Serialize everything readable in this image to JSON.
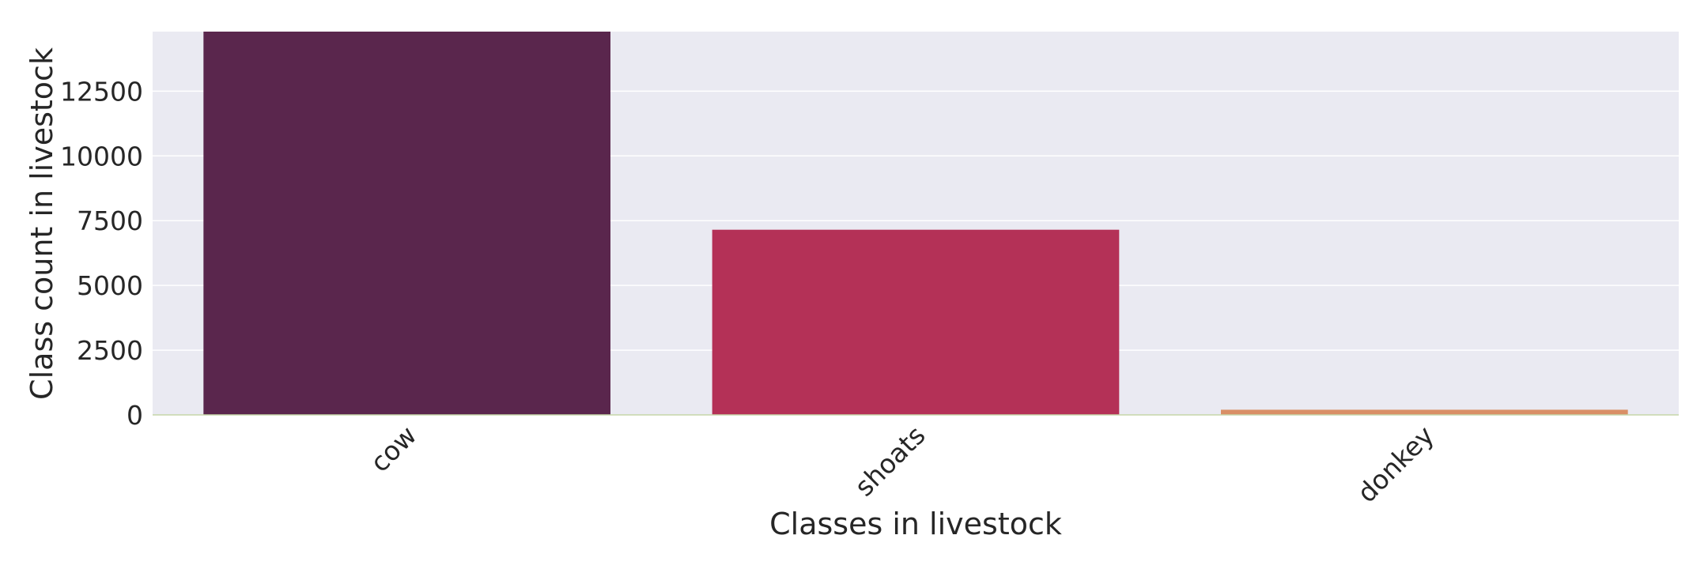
{
  "chart_data": {
    "type": "bar",
    "categories": [
      "cow",
      "shoats",
      "donkey"
    ],
    "values": [
      14900,
      7150,
      200
    ],
    "colors": [
      "#5a264d",
      "#b43157",
      "#d98f66"
    ],
    "xlabel": "Classes in livestock",
    "ylabel": "Class count in livestock",
    "ylim": [
      0,
      14800
    ],
    "yticks": [
      0,
      2500,
      5000,
      7500,
      10000,
      12500
    ],
    "ytick_labels": [
      "0",
      "2500",
      "5000",
      "7500",
      "10000",
      "12500"
    ],
    "grid": true,
    "background": "#eaeaf2",
    "grid_color": "#ffffff",
    "baseline_color": "#c5d6a8"
  }
}
